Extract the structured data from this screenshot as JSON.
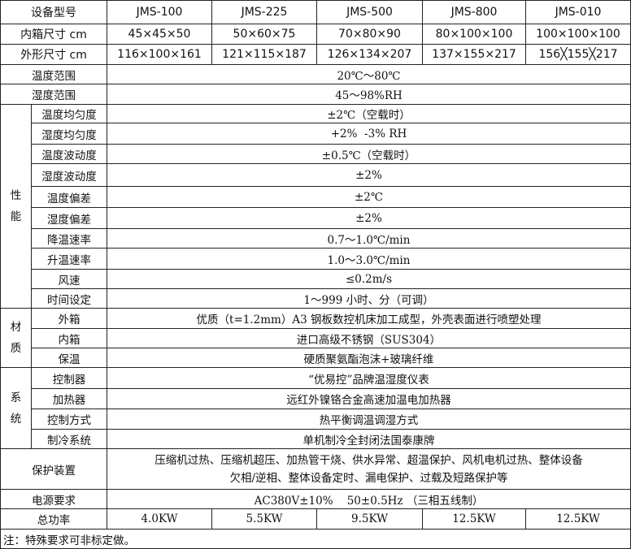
{
  "header": {
    "label": "设备型号",
    "models": [
      "JMS-100",
      "JMS-225",
      "JMS-500",
      "JMS-800",
      "JMS-010"
    ]
  },
  "inner_size": {
    "label": "内箱尺寸 cm",
    "values": [
      "45×45×50",
      "50×60×75",
      "70×80×90",
      "80×100×100",
      "100×100×100"
    ]
  },
  "outer_size": {
    "label": "外形尺寸 cm",
    "values": [
      "116×100×161",
      "121×115×187",
      "126×134×207",
      "137×155×217",
      "156╳155╳217"
    ]
  },
  "temp_range": {
    "label": "温度范围",
    "value": "20℃～80℃"
  },
  "hum_range": {
    "label": "湿度范围",
    "value": "45～98%RH"
  },
  "performance": {
    "group": "性能",
    "rows": [
      {
        "label": "温度均匀度",
        "value": "±2℃（空载时）"
      },
      {
        "label": "湿度均匀度",
        "value": "+2%  -3% RH"
      },
      {
        "label": "温度波动度",
        "value": "±0.5℃（空载时）"
      },
      {
        "label": "湿度波动度",
        "value": "±2%"
      },
      {
        "label": "温度偏差",
        "value": "±2℃"
      },
      {
        "label": "湿度偏差",
        "value": "±2%"
      },
      {
        "label": "降温速率",
        "value": "0.7～1.0℃/min"
      },
      {
        "label": "升温速率",
        "value": "1.0～3.0℃/min"
      },
      {
        "label": "风速",
        "value": "≤0.2m/s"
      },
      {
        "label": "时间设定",
        "value": "1～999 小时、分（可调）"
      }
    ]
  },
  "material": {
    "group": "材质",
    "rows": [
      {
        "label": "外箱",
        "value": "优质（t=1.2mm）A3 钢板数控机床加工成型，外壳表面进行喷塑处理"
      },
      {
        "label": "内箱",
        "value": "进口高级不锈钢（SUS304）"
      },
      {
        "label": "保温",
        "value": "硬质聚氨酯泡沫+玻璃纤维"
      }
    ]
  },
  "system": {
    "group": "系统",
    "rows": [
      {
        "label": "控制器",
        "value": "“优易控”品牌温湿度仪表"
      },
      {
        "label": "加热器",
        "value": "远红外镍铬合金高速加温电加热器"
      },
      {
        "label": "控制方式",
        "value": "热平衡调温调湿方式"
      },
      {
        "label": "制冷系统",
        "value": "单机制冷全封闭法国泰康牌"
      }
    ]
  },
  "protection": {
    "label": "保护装置",
    "line1": "压缩机过热、压缩机超压、加热管干烧、供水异常、超温保护、风机电机过热、整体设备",
    "line2": "欠相/逆相、整体设备定时、漏电保护、过载及短路保护等"
  },
  "power_req": {
    "label": "电源要求",
    "value": "AC380V±10%    50±0.5Hz （三相五线制）"
  },
  "total_power": {
    "label": "总功率",
    "values": [
      "4.0KW",
      "5.5KW",
      "9.5KW",
      "12.5KW",
      "12.5KW"
    ]
  },
  "note": "注：特殊要求可非标定做。"
}
